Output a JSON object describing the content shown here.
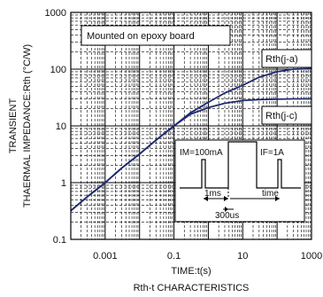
{
  "chart_data": {
    "type": "line",
    "title": "Rth-t CHARACTERISTICS",
    "xlabel": "TIME:t(s)",
    "ylabel_line1": "TRANSIENT",
    "ylabel_line2": "THAERMAL IMPEDANCE:Rth (°C/W)",
    "xscale": "log",
    "yscale": "log",
    "xlim": [
      0.0001,
      1000
    ],
    "ylim": [
      0.1,
      1000
    ],
    "x_ticks": [
      "0.001",
      "0.1",
      "10",
      "1000"
    ],
    "y_ticks": [
      "1000",
      "100",
      "10",
      "1",
      "0.1"
    ],
    "grid": true,
    "annotation": "Mounted on epoxy board",
    "series": [
      {
        "name": "Rth(j-a)",
        "color": "#1f2a6e",
        "x": [
          0.0001,
          0.0003,
          0.001,
          0.003,
          0.01,
          0.03,
          0.1,
          0.3,
          1,
          3,
          10,
          30,
          100,
          300,
          1000
        ],
        "y": [
          0.32,
          0.56,
          1.0,
          1.8,
          3.2,
          5.6,
          10,
          17,
          26,
          38,
          52,
          72,
          90,
          100,
          102
        ]
      },
      {
        "name": "Rth(j-c)",
        "color": "#1f2a6e",
        "x": [
          0.0001,
          0.0003,
          0.001,
          0.003,
          0.01,
          0.03,
          0.1,
          0.3,
          1,
          3,
          10,
          30,
          100,
          300,
          1000
        ],
        "y": [
          0.32,
          0.56,
          1.0,
          1.8,
          3.2,
          5.6,
          10,
          16,
          21,
          25,
          28,
          29,
          29.5,
          30,
          30
        ]
      }
    ],
    "inset": {
      "im_label": "IM=100mA",
      "if_label": "IF=1A",
      "t1_label": "1ms",
      "time_label": "time",
      "t2_label": "300us"
    }
  }
}
